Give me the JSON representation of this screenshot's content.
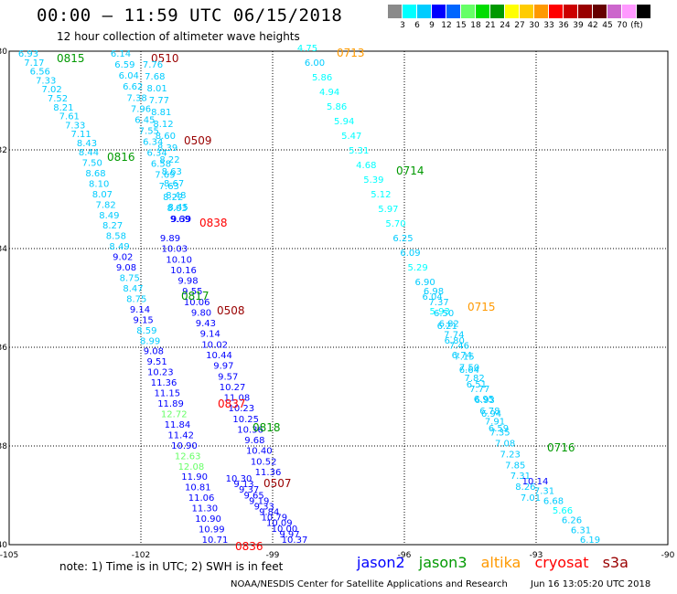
{
  "title": "00:00 – 11:59 UTC 06/15/2018",
  "subtitle": "12 hour collection of altimeter wave heights",
  "colorbar": {
    "colors": [
      "#8a8a8a",
      "#00ffff",
      "#00ccff",
      "#0000ff",
      "#0066ff",
      "#66ff66",
      "#00dd00",
      "#009900",
      "#ffff00",
      "#ffcc00",
      "#ff9900",
      "#ff0000",
      "#cc0000",
      "#990000",
      "#660000",
      "#cc66cc",
      "#ff99ff",
      "#000000"
    ],
    "labels": [
      "3",
      "6",
      "9",
      "12",
      "15",
      "18",
      "21",
      "24",
      "27",
      "30",
      "33",
      "36",
      "39",
      "42",
      "45",
      "70",
      "(ft)"
    ]
  },
  "axes": {
    "lon_ticks": [
      "-105",
      "-102",
      "-99",
      "-96",
      "-93",
      "-90"
    ],
    "lat_ticks": [
      "-30",
      "-32",
      "-34",
      "-36",
      "-38",
      "-40"
    ]
  },
  "satellites": {
    "jason2": {
      "label": "jason2",
      "color": "#0000ff"
    },
    "jason3": {
      "label": "jason3",
      "color": "#009900"
    },
    "altika": {
      "label": "altika",
      "color": "#ff9900"
    },
    "cryosat": {
      "label": "cryosat",
      "color": "#ff0000"
    },
    "s3a": {
      "label": "s3a",
      "color": "#990000"
    }
  },
  "tracks": [
    {
      "sat": "jason3",
      "pass": "0815",
      "values": [
        "6.93",
        "7.17",
        "6.56",
        "7.33",
        "7.02",
        "7.52",
        "8.21",
        "7.61",
        "7.33",
        "7.11",
        "8.43"
      ]
    },
    {
      "sat": "jason3",
      "pass": "0816",
      "values": [
        "8.44",
        "7.50",
        "8.68",
        "8.10",
        "8.07",
        "7.82",
        "8.49",
        "8.27",
        "8.58",
        "8.49",
        "9.02",
        "9.08",
        "8.75",
        "8.47",
        "8.75",
        "9.14",
        "9.15",
        "8.59",
        "8.99",
        "9.08",
        "9.51",
        "10.23",
        "11.36",
        "11.15",
        "11.89",
        "12.72",
        "11.84",
        "11.42",
        "10.90",
        "12.63",
        "12.08",
        "11.90",
        "10.81",
        "11.06",
        "11.30",
        "10.90",
        "10.99",
        "10.71"
      ]
    },
    {
      "sat": "s3a",
      "pass": "0510",
      "values": [
        "6.14",
        "6.59",
        "6.04",
        "6.62",
        "7.38",
        "7.96",
        "6.45",
        "7.55",
        "6.34",
        "6.34",
        "6.58",
        "7.69",
        "7.63",
        "8.22",
        "8.03",
        "9.39"
      ]
    },
    {
      "sat": "s3a",
      "pass": "0509",
      "values": [
        "7.76",
        "7.68",
        "8.01",
        "7.77",
        "8.81",
        "8.12",
        "8.60",
        "8.39",
        "8.22",
        "8.63",
        "8.67",
        "8.48",
        "8.45",
        "9.69"
      ]
    },
    {
      "sat": "s3a",
      "pass": "0508",
      "values": [
        "9.89",
        "10.03",
        "10.10",
        "10.16",
        "9.98",
        "9.55",
        "10.06",
        "9.80",
        "9.43",
        "9.14",
        "10.02",
        "10.44",
        "9.97",
        "9.57",
        "10.27",
        "11.08",
        "10.23",
        "10.25",
        "10.36",
        "9.68",
        "10.40",
        "10.52",
        "11.36"
      ]
    },
    {
      "sat": "s3a",
      "pass": "0507",
      "values": [
        "10.30",
        "9.13",
        "9.37",
        "9.65",
        "9.19",
        "9.33",
        "9.84",
        "10.79",
        "10.09",
        "10.00",
        "9.97",
        "10.37"
      ]
    },
    {
      "sat": "cryosat",
      "pass": "0838",
      "values": []
    },
    {
      "sat": "cryosat",
      "pass": "0837",
      "values": []
    },
    {
      "sat": "cryosat",
      "pass": "0836",
      "values": []
    },
    {
      "sat": "jason3",
      "pass": "0817",
      "values": []
    },
    {
      "sat": "jason3",
      "pass": "0818",
      "values": []
    },
    {
      "sat": "altika",
      "pass": "0713",
      "values": [
        "4.75",
        "6.00",
        "5.86",
        "4.94",
        "5.86",
        "5.94",
        "5.47",
        "5.31",
        "4.68",
        "5.39",
        "5.12",
        "5.97",
        "5.70",
        "6.25",
        "6.09",
        "5.29",
        "6.90",
        "6.04",
        "5.93",
        "6.21",
        "6.80",
        "6.74",
        "6.64",
        "6.51",
        "6.95",
        "6.94",
        "6.59"
      ]
    },
    {
      "sat": "jason3",
      "pass": "0714",
      "values": []
    },
    {
      "sat": "altika",
      "pass": "0715",
      "values": [
        "6.98",
        "7.37",
        "6.50",
        "6.82",
        "7.74",
        "7.46",
        "7.15",
        "7.50",
        "7.82",
        "7.77",
        "6.93",
        "6.78",
        "7.91",
        "7.35",
        "7.08",
        "7.23",
        "7.85",
        "7.31",
        "8.26",
        "7.01"
      ]
    },
    {
      "sat": "jason3",
      "pass": "0716",
      "values": [
        "10.14",
        "7.31",
        "6.68",
        "5.66",
        "6.26",
        "6.31",
        "6.19"
      ]
    }
  ],
  "note": "note: 1) Time is in UTC; 2) SWH is in feet",
  "credit": "NOAA/NESDIS Center for Satellite Applications and Research",
  "stamp": "Jun 16 13:05:20 UTC 2018"
}
